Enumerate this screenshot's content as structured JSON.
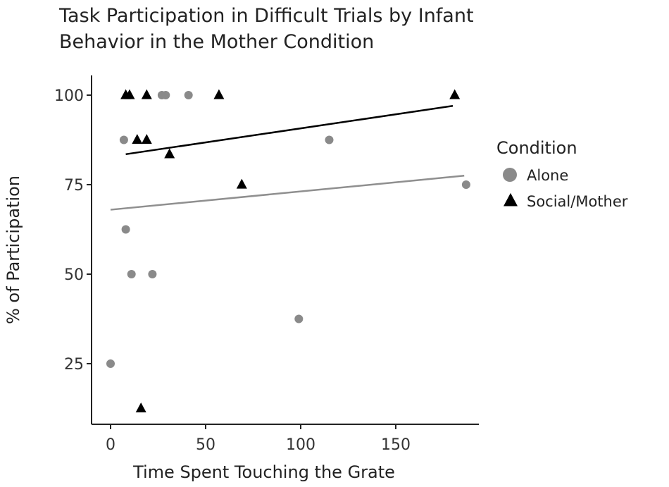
{
  "title_lines": [
    "Task Participation in Difficult Trials by Infant",
    "Behavior in the Mother Condition"
  ],
  "chart_data": {
    "type": "scatter",
    "title": "Task Participation in Difficult Trials by Infant Behavior in the Mother Condition",
    "xlabel": "Time Spent Touching the Grate",
    "ylabel": "% of Participation",
    "xlim": [
      -10,
      195
    ],
    "ylim": [
      8,
      108
    ],
    "x_ticks": [
      0,
      50,
      100,
      150
    ],
    "y_ticks": [
      25,
      50,
      75,
      100
    ],
    "legend": {
      "title": "Condition",
      "position": "right",
      "entries": [
        "Alone",
        "Social/Mother"
      ]
    },
    "series": [
      {
        "name": "Alone",
        "marker": "circle",
        "color": "#8a8a8a",
        "points": [
          {
            "x": 0,
            "y": 25
          },
          {
            "x": 7,
            "y": 87.5
          },
          {
            "x": 8,
            "y": 62.5
          },
          {
            "x": 11,
            "y": 50
          },
          {
            "x": 22,
            "y": 50
          },
          {
            "x": 27,
            "y": 100
          },
          {
            "x": 29,
            "y": 100
          },
          {
            "x": 41,
            "y": 100
          },
          {
            "x": 99,
            "y": 37.5
          },
          {
            "x": 115,
            "y": 87.5
          },
          {
            "x": 187,
            "y": 75
          }
        ],
        "fit": {
          "x": [
            0,
            186
          ],
          "y": [
            68,
            77.5
          ]
        }
      },
      {
        "name": "Social/Mother",
        "marker": "triangle",
        "color": "#000000",
        "points": [
          {
            "x": 8,
            "y": 100
          },
          {
            "x": 10,
            "y": 100
          },
          {
            "x": 14,
            "y": 87.5
          },
          {
            "x": 16,
            "y": 12.5
          },
          {
            "x": 19,
            "y": 100
          },
          {
            "x": 19,
            "y": 87.5
          },
          {
            "x": 31,
            "y": 83.5
          },
          {
            "x": 57,
            "y": 100
          },
          {
            "x": 69,
            "y": 75
          },
          {
            "x": 181,
            "y": 100
          }
        ],
        "fit": {
          "x": [
            8,
            180
          ],
          "y": [
            83.5,
            97
          ]
        }
      }
    ]
  }
}
